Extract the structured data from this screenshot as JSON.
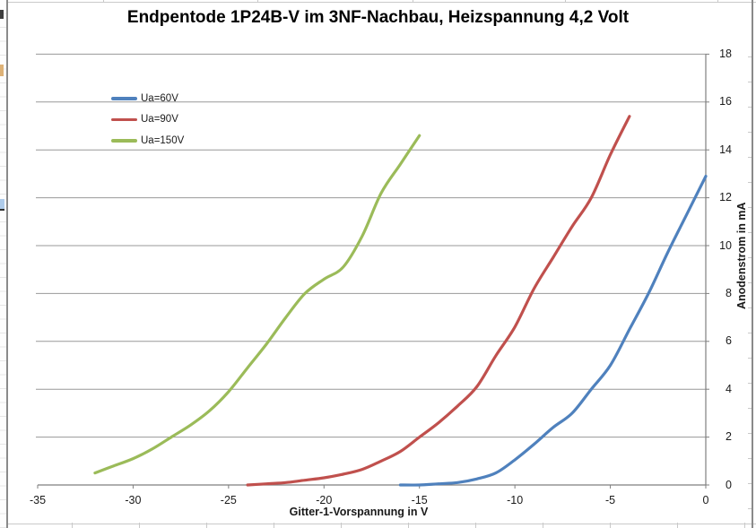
{
  "chart_data": {
    "type": "line",
    "title": "Endpentode 1P24B-V im 3NF-Nachbau, Heizspannung 4,2 Volt",
    "xlabel": "Gitter-1-Vorspannung in V",
    "ylabel": "Anodenstrom in mA",
    "xlim": [
      -35,
      0
    ],
    "ylim": [
      0,
      18
    ],
    "x_ticks": [
      -35,
      -30,
      -25,
      -20,
      -15,
      -10,
      -5,
      0
    ],
    "y_ticks": [
      0,
      2,
      4,
      6,
      8,
      10,
      12,
      14,
      16,
      18
    ],
    "grid": "horizontal-only",
    "legend_position": "inside-top-left",
    "line_style": "smooth",
    "series": [
      {
        "name": "Ua=60V",
        "color": "#4F81BD",
        "x": [
          -16,
          -15,
          -14,
          -13,
          -12,
          -11,
          -10,
          -9,
          -8,
          -7,
          -6,
          -5,
          -4,
          -3,
          -2,
          -1,
          0
        ],
        "y": [
          0.0,
          0.0,
          0.05,
          0.1,
          0.25,
          0.5,
          1.05,
          1.7,
          2.4,
          3.0,
          4.0,
          5.0,
          6.5,
          8.0,
          9.7,
          11.3,
          12.9
        ]
      },
      {
        "name": "Ua=90V",
        "color": "#C0504D",
        "x": [
          -24,
          -23,
          -22,
          -21,
          -20,
          -19,
          -18,
          -17,
          -16,
          -15,
          -14,
          -13,
          -12,
          -11,
          -10,
          -9,
          -8,
          -7,
          -6,
          -5,
          -4
        ],
        "y": [
          0.0,
          0.05,
          0.1,
          0.2,
          0.3,
          0.45,
          0.65,
          1.0,
          1.4,
          2.0,
          2.6,
          3.3,
          4.1,
          5.4,
          6.6,
          8.2,
          9.5,
          10.8,
          12.0,
          13.8,
          15.4
        ]
      },
      {
        "name": "Ua=150V",
        "color": "#9BBB59",
        "x": [
          -32,
          -31,
          -30,
          -29,
          -28,
          -27,
          -26,
          -25,
          -24,
          -23,
          -22,
          -21,
          -20,
          -19,
          -18,
          -17,
          -16,
          -15
        ],
        "y": [
          0.5,
          0.8,
          1.1,
          1.5,
          2.0,
          2.5,
          3.1,
          3.9,
          4.9,
          5.9,
          7.0,
          8.0,
          8.6,
          9.1,
          10.4,
          12.2,
          13.4,
          14.6
        ]
      }
    ]
  },
  "colors": {
    "gridline": "#989898",
    "axis": "#7f7f7f",
    "text": "#1a1a1a"
  }
}
